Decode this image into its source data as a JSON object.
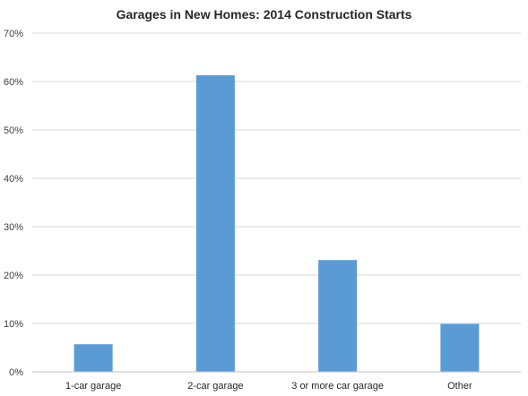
{
  "chart_data": {
    "type": "bar",
    "title": "Garages in New Homes: 2014 Construction Starts",
    "categories": [
      "1-car garage",
      "2-car garage",
      "3 or more car garage",
      "Other"
    ],
    "values": [
      5.7,
      61.3,
      23.1,
      9.9
    ],
    "xlabel": "",
    "ylabel": "",
    "ylim": [
      0,
      70
    ],
    "yticks": [
      0,
      10,
      20,
      30,
      40,
      50,
      60,
      70
    ],
    "ytick_labels": [
      "0%",
      "10%",
      "20%",
      "30%",
      "40%",
      "50%",
      "60%",
      "70%"
    ],
    "grid": true,
    "legend": "none",
    "bar_color": "#5b9bd5"
  }
}
